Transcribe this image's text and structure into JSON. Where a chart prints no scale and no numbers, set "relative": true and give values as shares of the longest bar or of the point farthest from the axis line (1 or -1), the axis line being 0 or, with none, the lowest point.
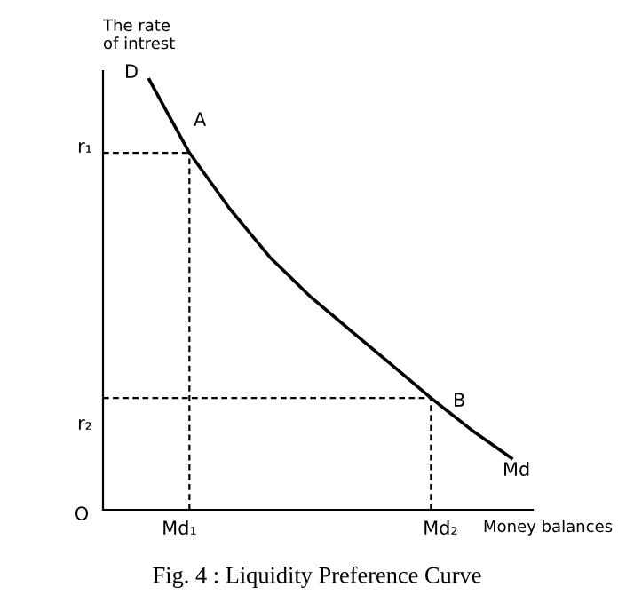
{
  "chart_data": {
    "type": "line",
    "title": "Fig. 4 : Liquidity Preference Curve",
    "xlabel": "Money balances",
    "ylabel": "The rate\nof intrest",
    "relative": true,
    "categories": [
      null,
      null,
      null,
      null,
      null,
      null,
      null,
      null,
      null,
      null
    ],
    "series": [
      {
        "color": "#000000",
        "values": [
          1.0,
          0.83,
          0.7,
          0.587,
          0.496,
          0.417,
          0.339,
          0.26,
          0.186,
          0.12
        ]
      }
    ],
    "annotations": [
      "D",
      "Md",
      "O",
      "A",
      "B",
      "r₁",
      "r₂",
      "Md₁",
      "Md₂"
    ],
    "line_style": "solid"
  }
}
